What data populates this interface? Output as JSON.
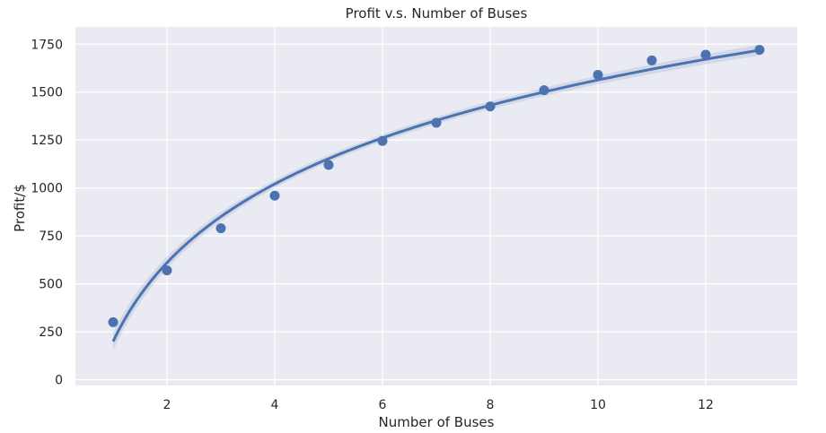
{
  "chart_data": {
    "type": "scatter",
    "title": "Profit v.s. Number of Buses",
    "xlabel": "Number of Buses",
    "ylabel": "Profit/$",
    "xlim": [
      0.3,
      13.7
    ],
    "ylim": [
      -30,
      1840
    ],
    "xticks": [
      2,
      4,
      6,
      8,
      10,
      12
    ],
    "yticks": [
      0,
      250,
      500,
      750,
      1000,
      1250,
      1500,
      1750
    ],
    "grid": true,
    "points": {
      "x": [
        1,
        2,
        3,
        4,
        5,
        6,
        7,
        8,
        9,
        10,
        11,
        12,
        13
      ],
      "y": [
        300,
        570,
        790,
        960,
        1120,
        1245,
        1340,
        1425,
        1510,
        1590,
        1665,
        1695,
        1720
      ]
    },
    "fit": {
      "type": "logarithmic",
      "intercept": 200,
      "slope": 592,
      "confidence_band": true
    },
    "colors": {
      "background": "#eaeaf2",
      "grid": "#ffffff",
      "series": "#4c72b0",
      "band": "#4c72b0"
    }
  }
}
